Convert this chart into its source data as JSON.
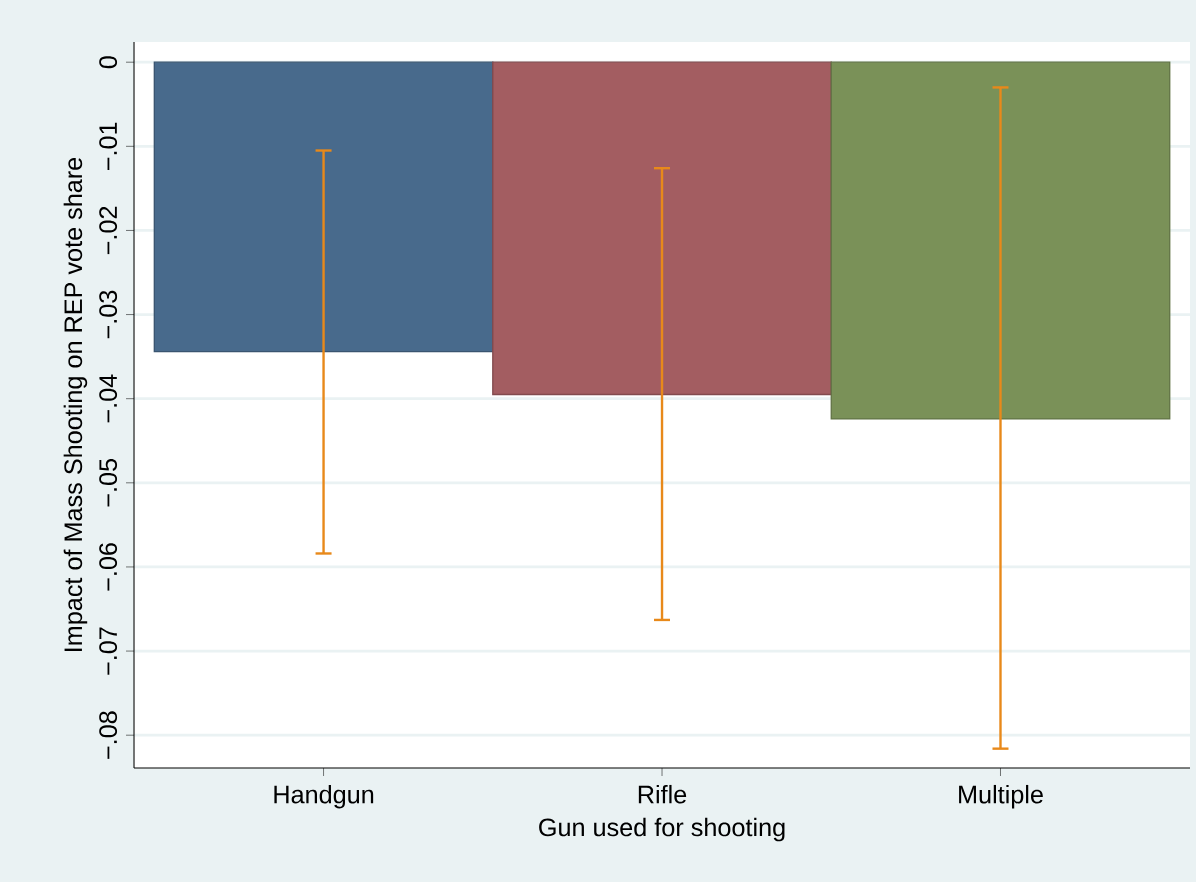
{
  "chart_data": {
    "type": "bar",
    "xlabel": "Gun used for shooting",
    "ylabel": "Impact of Mass Shooting on REP vote share",
    "categories": [
      "Handgun",
      "Rifle",
      "Multiple"
    ],
    "values": [
      -0.0344,
      -0.0395,
      -0.0424
    ],
    "colors": [
      "#486a8c",
      "#a35d61",
      "#7a9158"
    ],
    "errors": [
      [
        -0.0584,
        -0.0105
      ],
      [
        -0.0663,
        -0.0126
      ],
      [
        -0.0816,
        -0.003
      ]
    ],
    "ylim": [
      -0.0839,
      0.0024
    ],
    "yticks": [
      0,
      {
        "value": -0.01,
        "label": "−.01"
      },
      {
        "value": -0.02,
        "label": "−.02"
      },
      {
        "value": -0.03,
        "label": "−.03"
      },
      {
        "value": -0.04,
        "label": "−.04"
      },
      {
        "value": -0.05,
        "label": "−.05"
      },
      {
        "value": -0.06,
        "label": "−.06"
      },
      {
        "value": -0.07,
        "label": "−.07"
      },
      {
        "value": -0.08,
        "label": "−.08"
      }
    ],
    "grid": "y"
  }
}
